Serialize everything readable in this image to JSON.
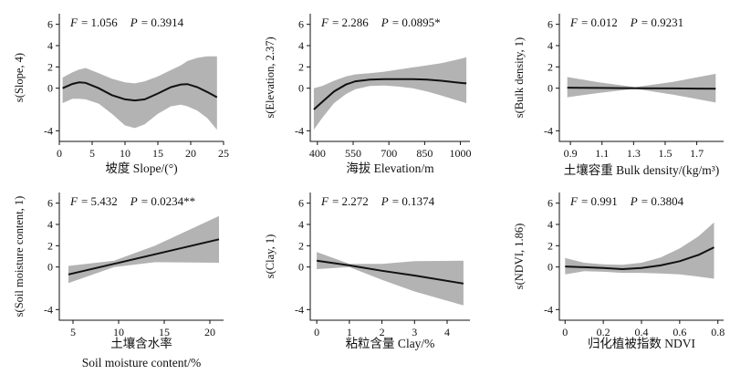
{
  "chart_data": [
    {
      "type": "line",
      "stat_F": "F",
      "stat_F_value": "= 1.056",
      "stat_P": "P",
      "stat_P_value": "= 0.3914",
      "ylabel": "s(Slope, 4)",
      "xlabel": "坡度 Slope/(°)",
      "xlabel2": "",
      "xlim": [
        0,
        25
      ],
      "ylim": [
        -5,
        7
      ],
      "xticks": [
        0,
        5,
        10,
        15,
        20,
        25
      ],
      "yticks": [
        -4,
        0,
        2,
        4,
        6
      ],
      "x": [
        0.5,
        2,
        3,
        4,
        6,
        8,
        10,
        11.5,
        13,
        15,
        17,
        18.5,
        19.5,
        21,
        22.5,
        24
      ],
      "fit": [
        0,
        0.4,
        0.55,
        0.5,
        0,
        -0.65,
        -1.05,
        -1.15,
        -1.05,
        -0.5,
        0.1,
        0.35,
        0.38,
        0.1,
        -0.35,
        -0.85
      ],
      "lower": [
        -1.4,
        -1.0,
        -1.0,
        -1.05,
        -1.45,
        -2.4,
        -3.5,
        -3.75,
        -3.4,
        -2.4,
        -1.7,
        -1.55,
        -1.7,
        -2.1,
        -2.8,
        -3.9
      ],
      "upper": [
        1.0,
        1.5,
        1.75,
        1.9,
        1.4,
        0.9,
        0.55,
        0.45,
        0.65,
        1.1,
        1.7,
        2.15,
        2.55,
        2.85,
        3.0,
        3.0
      ]
    },
    {
      "type": "line",
      "stat_F": "F",
      "stat_F_value": "= 2.286",
      "stat_P": "P",
      "stat_P_value": "= 0.0895*",
      "ylabel": "s(Elevation, 2.37)",
      "xlabel": "海拔 Elevation/m",
      "xlabel2": "",
      "xlim": [
        370,
        1040
      ],
      "ylim": [
        -5,
        7
      ],
      "xticks": [
        400,
        550,
        700,
        850,
        1000
      ],
      "yticks": [
        -4,
        0,
        2,
        4,
        6
      ],
      "x": [
        385,
        420,
        470,
        520,
        560,
        620,
        680,
        740,
        800,
        860,
        920,
        980,
        1025
      ],
      "fit": [
        -2.0,
        -1.3,
        -0.3,
        0.35,
        0.65,
        0.8,
        0.85,
        0.85,
        0.85,
        0.8,
        0.7,
        0.55,
        0.45
      ],
      "lower": [
        -3.9,
        -2.8,
        -1.4,
        -0.55,
        -0.1,
        0.2,
        0.25,
        0.15,
        0.0,
        -0.3,
        -0.7,
        -1.1,
        -1.4
      ],
      "upper": [
        0.0,
        0.2,
        0.7,
        1.1,
        1.3,
        1.4,
        1.55,
        1.75,
        1.95,
        2.15,
        2.35,
        2.65,
        2.9
      ]
    },
    {
      "type": "line",
      "stat_F": "F",
      "stat_F_value": "= 0.012",
      "stat_P": "P",
      "stat_P_value": "= 0.9231",
      "ylabel": "s(Bulk density, 1)",
      "xlabel": "土壤容重 Bulk density/(kg/m³)",
      "xlabel2": "",
      "xlim": [
        0.83,
        1.87
      ],
      "ylim": [
        -5,
        7
      ],
      "xticks": [
        0.9,
        1.1,
        1.3,
        1.5,
        1.7
      ],
      "xtick_labels": [
        "0.9",
        "1.1",
        "1.3",
        "1.5",
        "1.7"
      ],
      "yticks": [
        -4,
        0,
        2,
        4,
        6
      ],
      "x": [
        0.88,
        1.08,
        1.31,
        1.55,
        1.82
      ],
      "fit": [
        0.05,
        0.02,
        0.0,
        -0.02,
        -0.05
      ],
      "lower": [
        -0.85,
        -0.45,
        -0.05,
        -0.6,
        -1.35
      ],
      "upper": [
        1.05,
        0.55,
        0.1,
        0.6,
        1.35
      ]
    },
    {
      "type": "line",
      "stat_F": "F",
      "stat_F_value": "= 5.432",
      "stat_P": "P",
      "stat_P_value": "= 0.0234**",
      "ylabel": "s(Soil moisture content, 1)",
      "xlabel": "土壤含水率",
      "xlabel2": "Soil moisture content/%",
      "xlim": [
        3.5,
        21.5
      ],
      "ylim": [
        -5,
        7
      ],
      "xticks": [
        5,
        10,
        15,
        20
      ],
      "yticks": [
        -4,
        0,
        2,
        4,
        6
      ],
      "x": [
        4.5,
        9.5,
        14,
        21
      ],
      "fit": [
        -0.7,
        0.3,
        1.2,
        2.6
      ],
      "lower": [
        -1.5,
        0.0,
        0.45,
        0.4
      ],
      "upper": [
        0.1,
        0.6,
        2.0,
        4.8
      ]
    },
    {
      "type": "line",
      "stat_F": "F",
      "stat_F_value": "= 2.272",
      "stat_P": "P",
      "stat_P_value": "= 0.1374",
      "ylabel": "s(Clay, 1)",
      "xlabel": "粘粒含量 Clay/%",
      "xlabel2": "",
      "xlim": [
        -0.2,
        4.7
      ],
      "ylim": [
        -5,
        7
      ],
      "xticks": [
        0,
        1,
        2,
        3,
        4
      ],
      "yticks": [
        -4,
        0,
        2,
        4,
        6
      ],
      "x": [
        0,
        1,
        2,
        3,
        4.5
      ],
      "fit": [
        0.6,
        0.15,
        -0.35,
        -0.8,
        -1.55
      ],
      "lower": [
        -0.2,
        0.0,
        -1.2,
        -2.3,
        -3.6
      ],
      "upper": [
        1.4,
        0.3,
        0.3,
        0.55,
        0.6
      ]
    },
    {
      "type": "line",
      "stat_F": "F",
      "stat_F_value": "= 0.991",
      "stat_P": "P",
      "stat_P_value": "= 0.3804",
      "ylabel": "s(NDVI, 1.86)",
      "xlabel": "归化植被指数 NDVI",
      "xlabel2": "",
      "xlim": [
        -0.03,
        0.83
      ],
      "ylim": [
        -5,
        7
      ],
      "xticks": [
        0,
        0.2,
        0.4,
        0.6,
        0.8
      ],
      "xtick_labels": [
        "0",
        "0.2",
        "0.4",
        "0.6",
        "0.8"
      ],
      "yticks": [
        -4,
        0,
        2,
        4,
        6
      ],
      "x": [
        0,
        0.1,
        0.2,
        0.3,
        0.4,
        0.5,
        0.6,
        0.7,
        0.78
      ],
      "fit": [
        0.05,
        -0.02,
        -0.1,
        -0.2,
        -0.1,
        0.15,
        0.55,
        1.15,
        1.85
      ],
      "lower": [
        -0.7,
        -0.4,
        -0.45,
        -0.55,
        -0.55,
        -0.6,
        -0.7,
        -0.9,
        -1.1
      ],
      "upper": [
        0.85,
        0.4,
        0.25,
        0.2,
        0.4,
        0.9,
        1.75,
        2.9,
        4.2
      ]
    }
  ]
}
